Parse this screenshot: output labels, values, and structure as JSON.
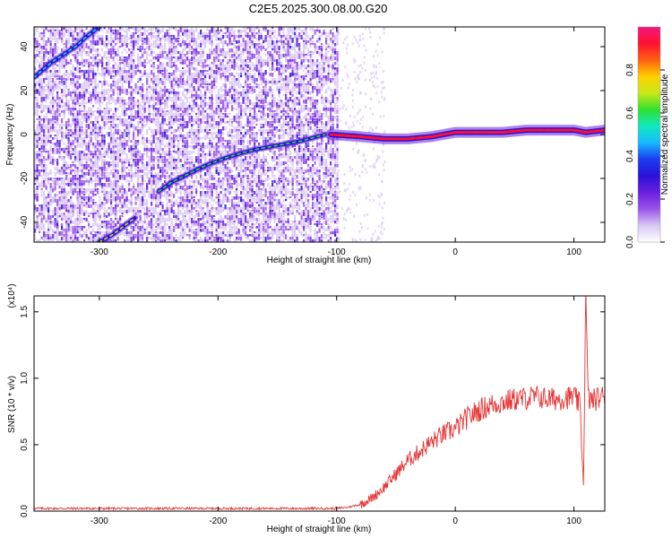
{
  "figure": {
    "title": "C2E5.2025.300.08.00.G20"
  },
  "colormap": [
    "#ffffff",
    "#d8c8f4",
    "#9a55e8",
    "#6a1ee0",
    "#2a12d8",
    "#1a3cf0",
    "#18b8ff",
    "#10e8c0",
    "#30e030",
    "#c8e818",
    "#ffd000",
    "#ff6010",
    "#ff1030",
    "#f01880"
  ],
  "chart_data": [
    {
      "type": "heatmap",
      "xlabel": "Height of straight line (km)",
      "ylabel": "Frequency (Hz)",
      "xlim": [
        -355,
        126
      ],
      "ylim": [
        -49,
        49
      ],
      "xticks": [
        -300,
        -200,
        -100,
        0,
        100
      ],
      "yticks": [
        -40,
        -20,
        0,
        20,
        40
      ],
      "colorbar": {
        "label": "Normalized spectral amplitude",
        "range": [
          0,
          1
        ],
        "ticks": [
          "0.0",
          "0.2",
          "0.4",
          "0.6",
          "0.8"
        ],
        "tick_values": [
          0,
          0.2,
          0.4,
          0.6,
          0.8
        ]
      },
      "noise_extent_x": [
        -355,
        -100
      ],
      "features": [
        {
          "kind": "track",
          "x": [
            -355,
            -340,
            -320,
            -310,
            -300
          ],
          "y": [
            26,
            33,
            40,
            45,
            49
          ],
          "level": 0.55
        },
        {
          "kind": "track",
          "x": [
            -300,
            -290,
            -280,
            -270
          ],
          "y": [
            -49,
            -46,
            -42,
            -38
          ],
          "level": 0.7
        },
        {
          "kind": "track",
          "x": [
            -250,
            -240,
            -225,
            -210,
            -190,
            -170,
            -150,
            -130,
            -110
          ],
          "y": [
            -26,
            -22,
            -18,
            -14,
            -10,
            -7,
            -5,
            -3,
            0
          ],
          "level": 0.65
        },
        {
          "kind": "track",
          "x": [
            -105,
            -80,
            -60,
            -40,
            -20,
            0,
            20,
            40,
            60,
            80,
            100,
            110,
            126
          ],
          "y": [
            0,
            -1,
            -2,
            -2,
            -1,
            1,
            1,
            1,
            2,
            2,
            2,
            1,
            2
          ],
          "level": 0.9
        }
      ]
    },
    {
      "type": "line",
      "xlabel": "Height of straight line (km)",
      "ylabel": "SNR (10 * v/v)",
      "y_multiplier": "(x10⁴)",
      "xlim": [
        -355,
        126
      ],
      "ylim": [
        0,
        1.62
      ],
      "xticks": [
        -300,
        -200,
        -100,
        0,
        100
      ],
      "yticks": [
        0.0,
        0.5,
        1.0,
        1.5
      ],
      "ytick_labels": [
        "0.0",
        "0.5",
        "1.0",
        "1.5"
      ],
      "color": "#e63232",
      "series": [
        {
          "x": [
            -355,
            -320,
            -280,
            -240,
            -200,
            -160,
            -120,
            -100,
            -90,
            -80,
            -70,
            -60,
            -50,
            -40,
            -30,
            -20,
            -10,
            0,
            10,
            20,
            30,
            40,
            50,
            60,
            70,
            80,
            90,
            100,
            105,
            108,
            110,
            112,
            115,
            120,
            126
          ],
          "y": [
            0.02,
            0.02,
            0.02,
            0.02,
            0.02,
            0.02,
            0.02,
            0.02,
            0.03,
            0.05,
            0.1,
            0.18,
            0.28,
            0.38,
            0.45,
            0.52,
            0.58,
            0.62,
            0.7,
            0.76,
            0.8,
            0.82,
            0.84,
            0.85,
            0.86,
            0.84,
            0.85,
            0.86,
            0.8,
            0.2,
            1.62,
            0.85,
            0.83,
            0.85,
            0.87
          ]
        }
      ]
    }
  ]
}
